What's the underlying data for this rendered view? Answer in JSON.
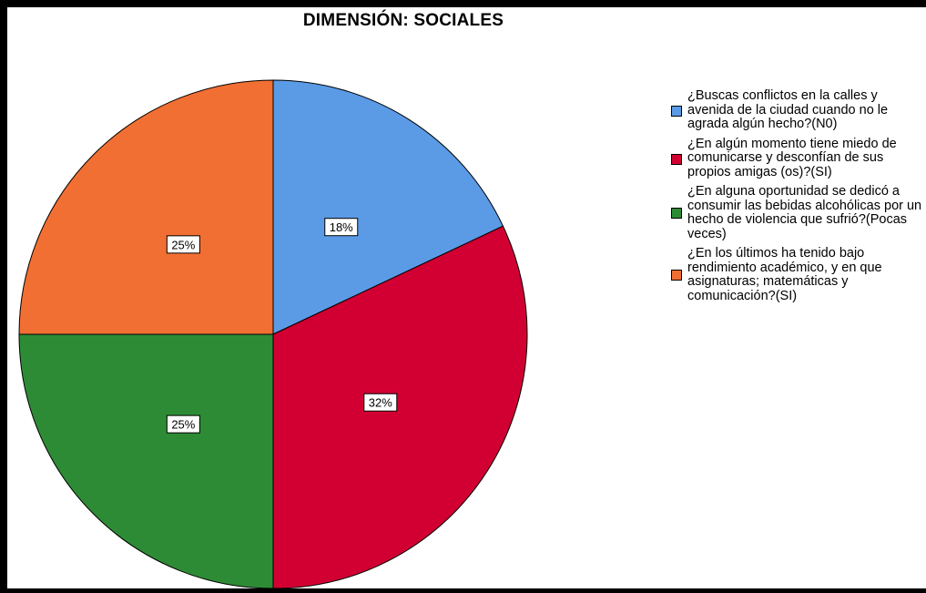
{
  "chart_data": {
    "type": "pie",
    "title": "DIMENSIÓN: SOCIALES",
    "categories": [
      "¿Buscas conflictos en la calles y avenida de la ciudad cuando no le agrada algún hecho?(N0)",
      "¿En algún momento tiene miedo de comunicarse y desconfían de sus propios amigas (os)?(SI)",
      "¿En alguna oportunidad se dedicó a consumir las bebidas alcohólicas por un hecho de violencia que sufrió?(Pocas veces)",
      "¿En los últimos ha tenido bajo rendimiento académico, y en que asignaturas; matemáticas y comunicación?(SI)"
    ],
    "values": [
      18,
      32,
      25,
      25
    ],
    "value_labels": [
      "18%",
      "32%",
      "25%",
      "25%"
    ],
    "colors": [
      "#5b9be6",
      "#d20032",
      "#2e8b35",
      "#f26f33"
    ],
    "legend_position": "right",
    "start_angle": "12 o'clock, clockwise"
  }
}
